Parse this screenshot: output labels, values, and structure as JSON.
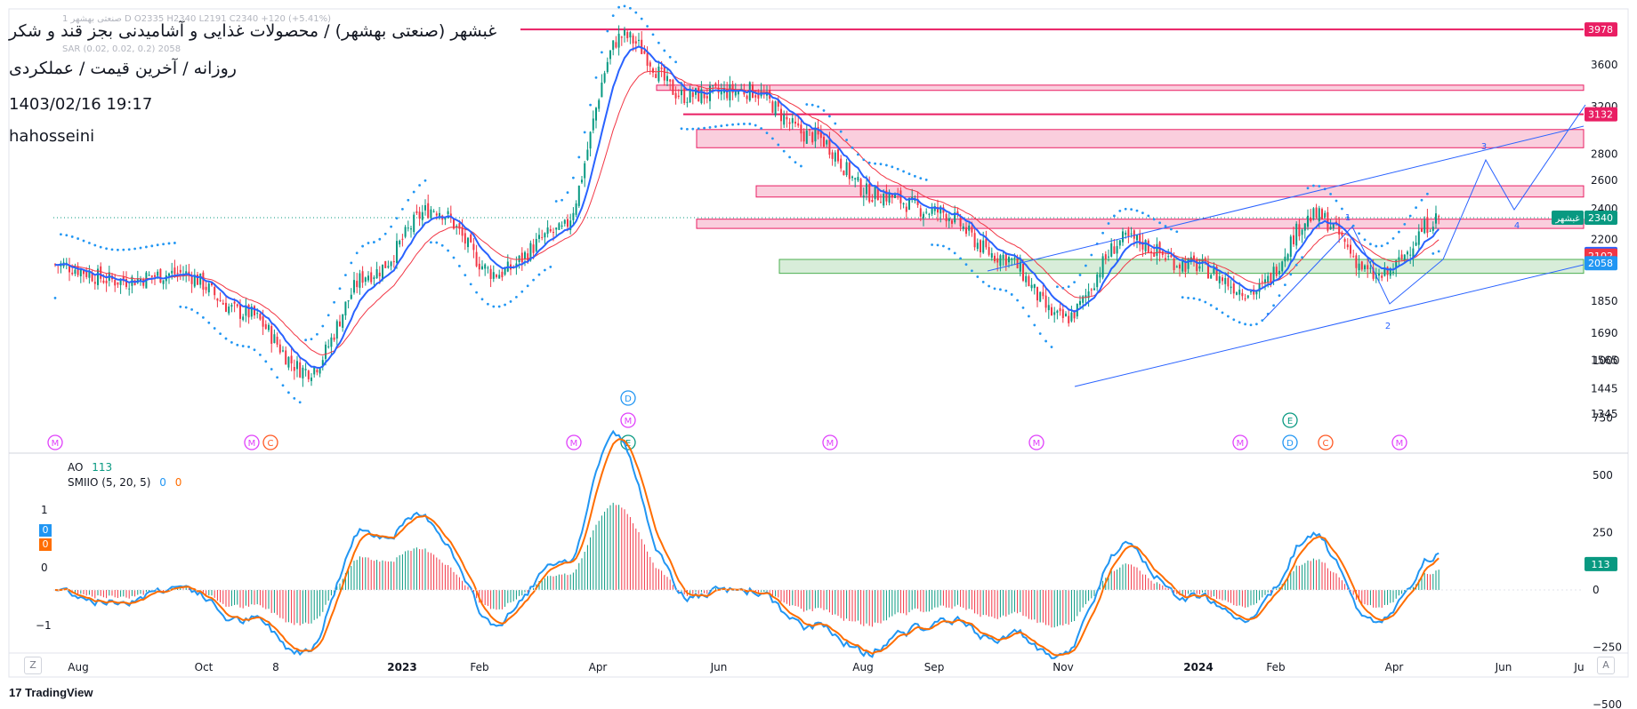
{
  "header": {
    "title": "غبشهر (صنعتی بهشهر) / محصولات غذایی و آشامیدنی بجز قند و شکر",
    "subtitle": "روزانه / آخرین قیمت / عملکردی",
    "datetime": "1403/02/16 19:17",
    "author": "hahosseini",
    "ohlc_line": "1  صنعتی بهشهر  D  O2335  H2340  L2191  C2340  +120 (+5.41%)",
    "sar_line": "SAR (0.02, 0.02, 0.2)  2058"
  },
  "price_axis": {
    "ticks": [
      "3600",
      "3200",
      "2800",
      "2600",
      "2400",
      "2200",
      "1850",
      "1690",
      "1565",
      "1445",
      "1345"
    ],
    "tags": [
      {
        "value": "3978",
        "color": "#e91e63"
      },
      {
        "value": "3132",
        "color": "#e91e63"
      },
      {
        "value": "2340",
        "color": "#089981",
        "label": "غبشهر"
      },
      {
        "value": "2112",
        "color": "#2962ff"
      },
      {
        "value": "2102",
        "color": "#f23645"
      },
      {
        "value": "2058",
        "color": "#2196f3"
      }
    ]
  },
  "osc_axis": {
    "ticks": [
      "1000",
      "750",
      "500",
      "250",
      "0",
      "-250",
      "-500"
    ],
    "tag": "113",
    "left_ticks": [
      "1",
      "0",
      "-1"
    ]
  },
  "time_axis": [
    "Aug",
    "Oct",
    "8",
    "2023",
    "Feb",
    "Apr",
    "Jun",
    "Aug",
    "Sep",
    "Nov",
    "2024",
    "Feb",
    "Apr",
    "Jun",
    "Ju"
  ],
  "legend": {
    "ao_label": "AO",
    "ao_value": "113",
    "smio_label": "SMIIO (5, 20, 5)",
    "smio_v1": "0",
    "smio_v2": "0",
    "left_badge_1": "0",
    "left_badge_2": "0"
  },
  "wave_labels": [
    "1",
    "2",
    "3",
    "4"
  ],
  "event_markers": [
    "M",
    "C",
    "M",
    "D",
    "M",
    "E",
    "M",
    "M",
    "E",
    "M",
    "D",
    "C",
    "M"
  ],
  "buttons": {
    "zoom": "Z",
    "auto": "A"
  },
  "branding": "TradingView",
  "colors": {
    "up": "#089981",
    "down": "#f23645",
    "ema_fast": "#2962ff",
    "ema_slow": "#f23645",
    "sar": "#2196f3",
    "ao_line": "#2196f3",
    "signal": "#ff6d00",
    "resistance": "#e91e63",
    "support": "#4caf50"
  },
  "chart_data": {
    "type": "candlestick",
    "price_scale": "log",
    "ylim": [
      1345,
      4000
    ],
    "current_close": 2340,
    "approx_close_path": [
      {
        "x": "Jul 2022",
        "y": 2050
      },
      {
        "x": "Aug 2022",
        "y": 1960
      },
      {
        "x": "Sep 2022",
        "y": 2000
      },
      {
        "x": "Oct 2022",
        "y": 1790
      },
      {
        "x": "Nov 2022",
        "y": 1520
      },
      {
        "x": "Dec 2022",
        "y": 2000
      },
      {
        "x": "Jan 2023",
        "y": 2400
      },
      {
        "x": "Feb 2023",
        "y": 2000
      },
      {
        "x": "Mar 2023",
        "y": 2250
      },
      {
        "x": "Apr 2023",
        "y": 3900
      },
      {
        "x": "May 2023",
        "y": 3300
      },
      {
        "x": "Jun 2023",
        "y": 3350
      },
      {
        "x": "Jul 2023",
        "y": 2950
      },
      {
        "x": "Aug 2023",
        "y": 2500
      },
      {
        "x": "Sep 2023",
        "y": 2380
      },
      {
        "x": "Oct 2023",
        "y": 2100
      },
      {
        "x": "Nov 2023",
        "y": 1760
      },
      {
        "x": "Dec 2023",
        "y": 2200
      },
      {
        "x": "Jan 2024",
        "y": 2050
      },
      {
        "x": "Feb 2024",
        "y": 1900
      },
      {
        "x": "Mar 2024",
        "y": 2350
      },
      {
        "x": "Apr 2024",
        "y": 1980
      },
      {
        "x": "May 2024",
        "y": 2340
      }
    ],
    "resistance_lines": [
      3978,
      3132
    ],
    "zones": [
      {
        "from": 3350,
        "to": 3400,
        "kind": "resistance"
      },
      {
        "from": 2850,
        "to": 3000,
        "kind": "resistance"
      },
      {
        "from": 2480,
        "to": 2560,
        "kind": "resistance"
      },
      {
        "from": 2270,
        "to": 2330,
        "kind": "resistance"
      },
      {
        "from": 2000,
        "to": 2080,
        "kind": "support"
      }
    ],
    "ao_last": 113
  }
}
